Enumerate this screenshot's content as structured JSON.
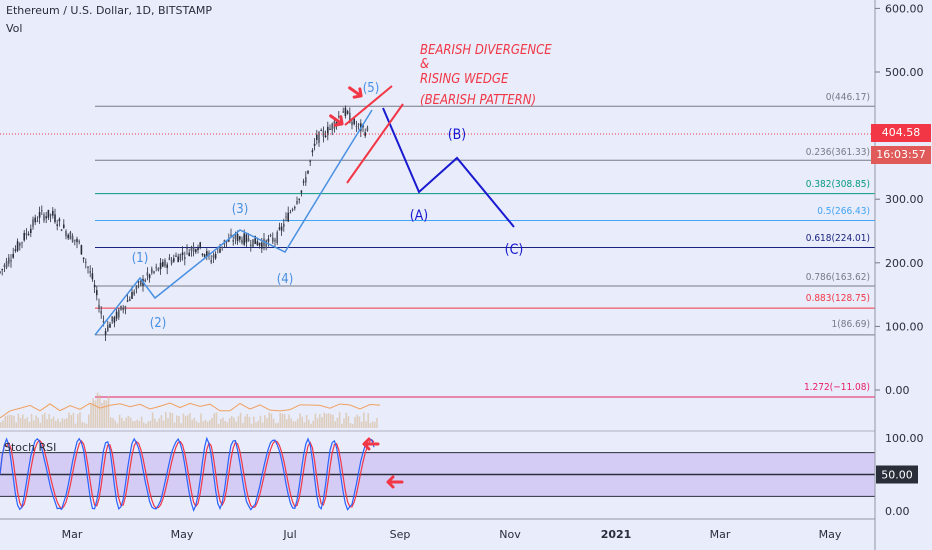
{
  "header": {
    "title": "Ethereum / U.S. Dollar, 1D, BITSTAMP",
    "volume_label": "Vol",
    "rsi_label": "Stoch RSI"
  },
  "price_scale": {
    "ticks": [
      "600.00",
      "500.00",
      "400.00",
      "300.00",
      "200.00",
      "100.00",
      "0.00"
    ],
    "last_price": "404.58",
    "countdown": "16:03:57"
  },
  "rsi_scale": {
    "ticks": [
      "100.00",
      "50.00",
      "0.00"
    ]
  },
  "time_axis": [
    "Mar",
    "May",
    "Jul",
    "Sep",
    "Nov",
    "2021",
    "Mar",
    "May"
  ],
  "fib_levels": [
    {
      "label": "0(446.17)",
      "color": "#787b86"
    },
    {
      "label": "0.236(361.33)",
      "color": "#787b86"
    },
    {
      "label": "0.382(308.85)",
      "color": "#089981"
    },
    {
      "label": "0.5(266.43)",
      "color": "#42a5f5"
    },
    {
      "label": "0.618(224.01)",
      "color": "#1a237e"
    },
    {
      "label": "0.786(163.62)",
      "color": "#787b86"
    },
    {
      "label": "0.883(128.75)",
      "color": "#f23645"
    },
    {
      "label": "1(86.69)",
      "color": "#787b86"
    },
    {
      "label": "1.272(−11.08)",
      "color": "#e91e63"
    }
  ],
  "annotations": {
    "text_lines": [
      "BEARISH DIVERGENCE",
      "&",
      "RISING WEDGE",
      "(BEARISH PATTERN)"
    ],
    "wave_labels": [
      "(1)",
      "(2)",
      "(3)",
      "(4)",
      "(5)"
    ],
    "correction_labels": [
      "(A)",
      "(B)",
      "(C)"
    ]
  },
  "chart_data": [
    {
      "type": "candlestick",
      "title": "Ethereum / U.S. Dollar, 1D, BITSTAMP",
      "ylim": [
        -40,
        640
      ],
      "x": [
        "Mar",
        "May",
        "Jul",
        "Sep",
        "Nov",
        "2021",
        "Mar",
        "May"
      ],
      "series": [
        {
          "name": "ETH/USD",
          "points": [
            [
              0,
              185
            ],
            [
              1,
              215
            ],
            [
              2,
              245
            ],
            [
              3,
              275
            ],
            [
              4,
              275
            ],
            [
              5,
              250
            ],
            [
              6,
              230
            ],
            [
              7,
              175
            ],
            [
              8,
              95
            ],
            [
              9,
              120
            ],
            [
              10,
              150
            ],
            [
              11,
              175
            ],
            [
              12,
              190
            ],
            [
              13,
              205
            ],
            [
              14,
              215
            ],
            [
              15,
              228
            ],
            [
              16,
              205
            ],
            [
              17,
              232
            ],
            [
              18,
              240
            ],
            [
              19,
              235
            ],
            [
              20,
              230
            ],
            [
              21,
              240
            ],
            [
              22,
              280
            ],
            [
              23,
              320
            ],
            [
              24,
              395
            ],
            [
              25,
              410
            ],
            [
              26,
              440
            ],
            [
              27,
              415
            ],
            [
              28,
              404.58
            ]
          ]
        }
      ],
      "fibonacci": [
        {
          "ratio": "0",
          "price": 446.17
        },
        {
          "ratio": "0.236",
          "price": 361.33
        },
        {
          "ratio": "0.382",
          "price": 308.85
        },
        {
          "ratio": "0.5",
          "price": 266.43
        },
        {
          "ratio": "0.618",
          "price": 224.01
        },
        {
          "ratio": "0.786",
          "price": 163.62
        },
        {
          "ratio": "0.883",
          "price": 128.75
        },
        {
          "ratio": "1",
          "price": 86.69
        },
        {
          "ratio": "1.272",
          "price": -11.08
        }
      ],
      "projection": [
        {
          "label": "",
          "price": 440
        },
        {
          "label": "(A)",
          "price": 310
        },
        {
          "label": "(B)",
          "price": 375
        },
        {
          "label": "(C)",
          "price": 262
        }
      ]
    },
    {
      "type": "line",
      "title": "Stoch RSI",
      "ylim": [
        0,
        100
      ],
      "levels": [
        80,
        50,
        20
      ],
      "series": [
        {
          "name": "K",
          "color": "#2962ff"
        },
        {
          "name": "D",
          "color": "#f23645"
        }
      ]
    }
  ]
}
